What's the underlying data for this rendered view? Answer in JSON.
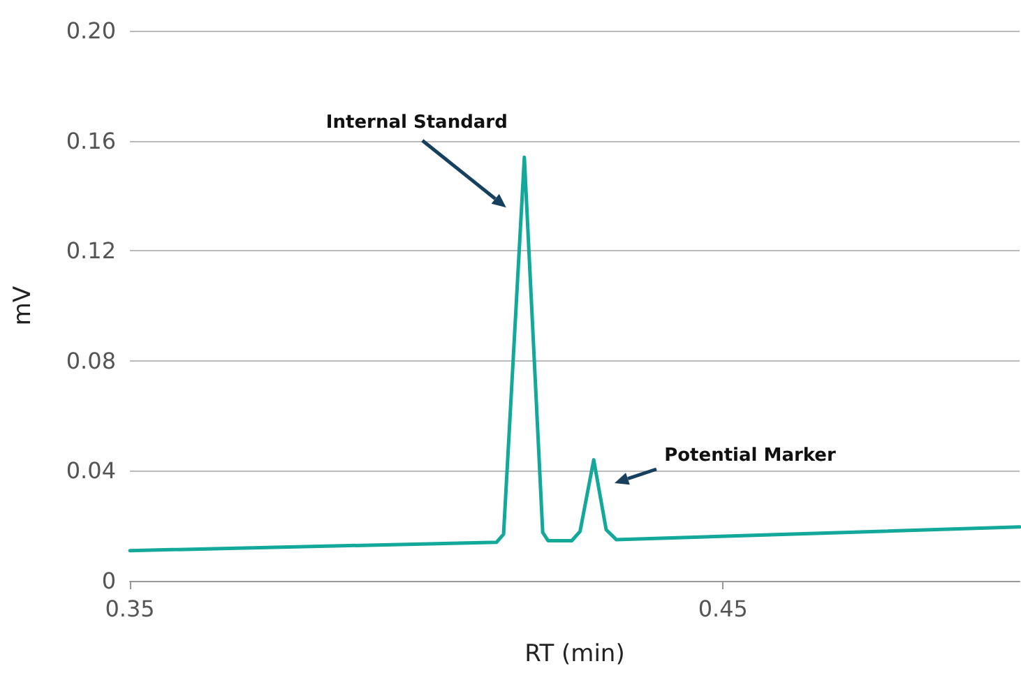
{
  "chart_data": {
    "type": "line",
    "xlabel": "RT (min)",
    "ylabel": "mV",
    "x": [
      0.35,
      0.4118,
      0.413,
      0.4165,
      0.4196,
      0.4205,
      0.4245,
      0.4259,
      0.4282,
      0.4303,
      0.432,
      0.5
    ],
    "series": [
      {
        "color": "#12a89a",
        "values": [
          0.011,
          0.014,
          0.017,
          0.154,
          0.0176,
          0.0146,
          0.0146,
          0.018,
          0.044,
          0.0186,
          0.015,
          0.0196
        ]
      }
    ],
    "xlim": [
      0.35,
      0.5
    ],
    "xticks": [
      0.35,
      0.45
    ],
    "ylim": [
      0,
      0.2
    ],
    "yticks": [
      0,
      0.04,
      0.08,
      0.12,
      0.16,
      {
        "value": 0.2,
        "label": "0.20"
      }
    ],
    "grid": "y",
    "marker": "none",
    "line_style": "solid",
    "annotations": [
      {
        "text": "Internal Standard",
        "x": 0.4165,
        "y": 0.154
      },
      "Potential Marker"
    ]
  }
}
